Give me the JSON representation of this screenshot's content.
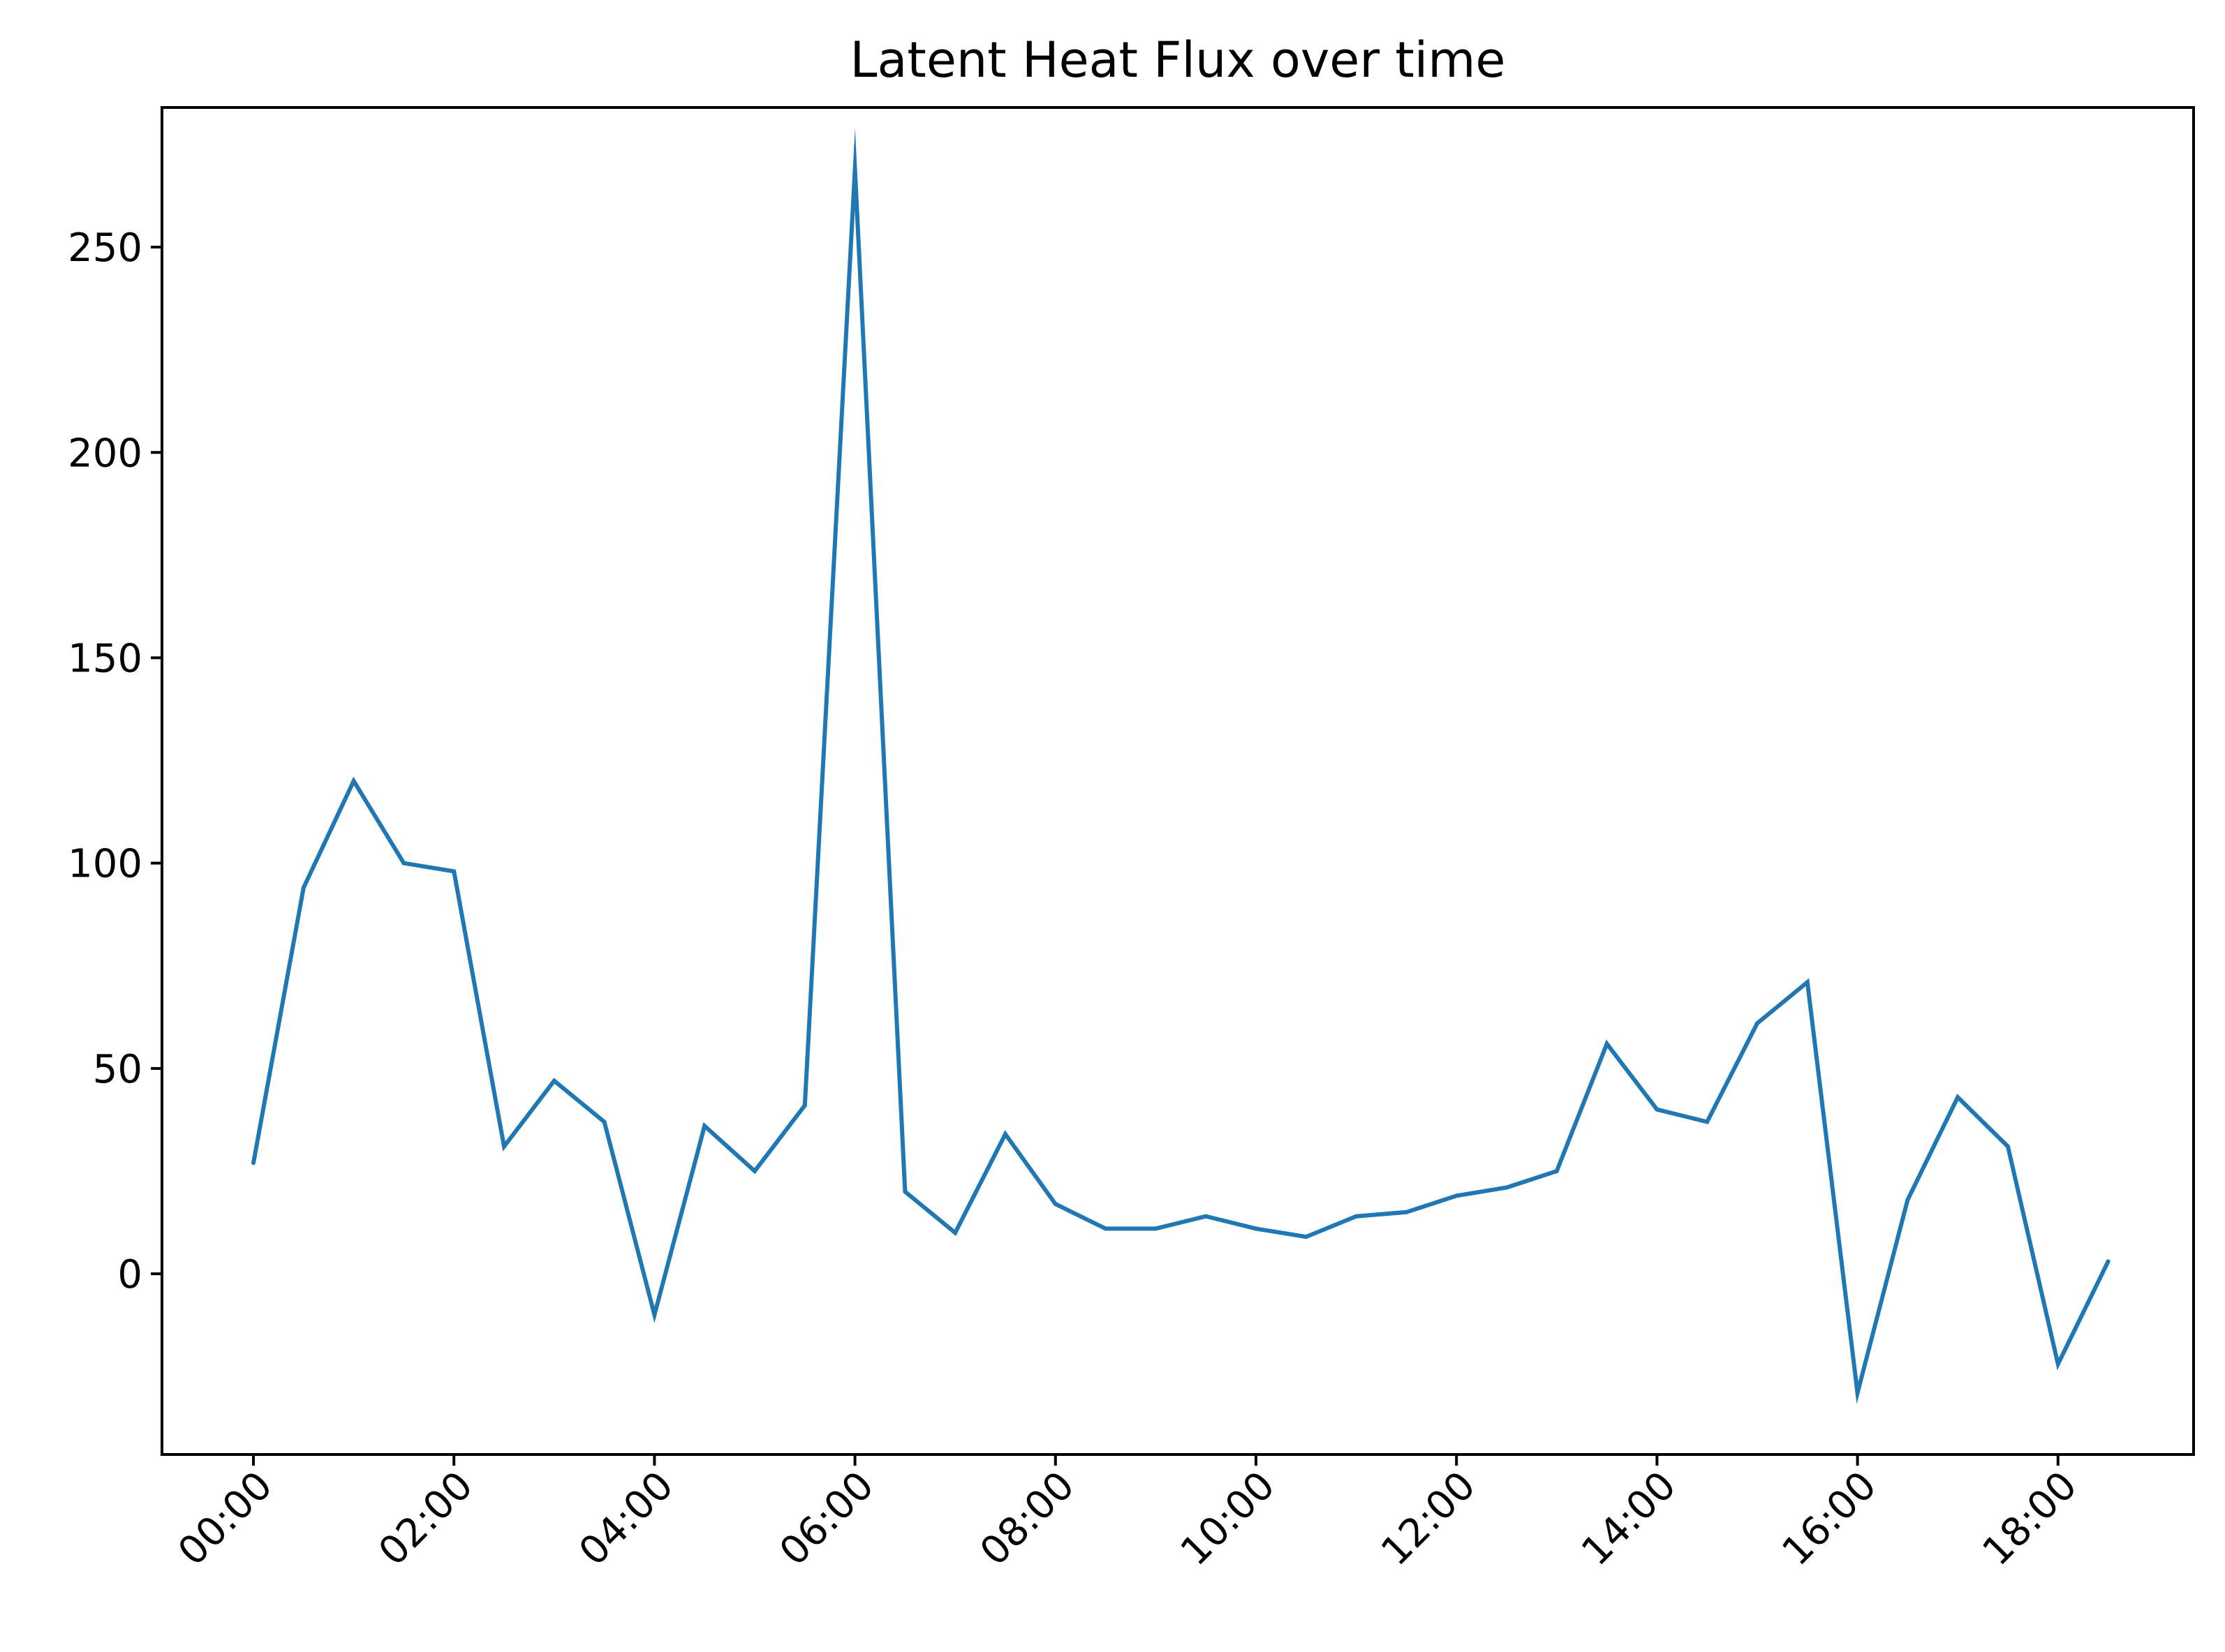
{
  "chart_data": {
    "type": "line",
    "title": "Latent Heat Flux over time",
    "xlabel": "",
    "ylabel": "",
    "x": [
      "00:00",
      "00:30",
      "01:00",
      "01:30",
      "02:00",
      "02:30",
      "03:00",
      "03:30",
      "04:00",
      "04:30",
      "05:00",
      "05:30",
      "06:00",
      "06:30",
      "07:00",
      "07:30",
      "08:00",
      "08:30",
      "09:00",
      "09:30",
      "10:00",
      "10:30",
      "11:00",
      "11:30",
      "12:00",
      "12:30",
      "13:00",
      "13:30",
      "14:00",
      "14:30",
      "15:00",
      "15:30",
      "16:00",
      "16:30",
      "17:00",
      "17:30",
      "18:00",
      "18:30"
    ],
    "series": [
      {
        "name": "",
        "color": "#1f77b4",
        "values": [
          27,
          94,
          120,
          100,
          98,
          31,
          47,
          37,
          -10,
          36,
          25,
          41,
          269,
          20,
          10,
          34,
          17,
          11,
          11,
          14,
          11,
          9,
          14,
          15,
          19,
          21,
          25,
          56,
          40,
          37,
          61,
          71,
          -29,
          18,
          43,
          31,
          -22,
          3
        ]
      }
    ],
    "x_ticks": [
      "00:00",
      "02:00",
      "04:00",
      "06:00",
      "08:00",
      "10:00",
      "12:00",
      "14:00",
      "16:00",
      "18:00"
    ],
    "y_ticks": [
      0,
      50,
      100,
      150,
      200,
      250
    ],
    "ylim": [
      -44,
      284
    ],
    "grid": false,
    "legend": "none"
  }
}
